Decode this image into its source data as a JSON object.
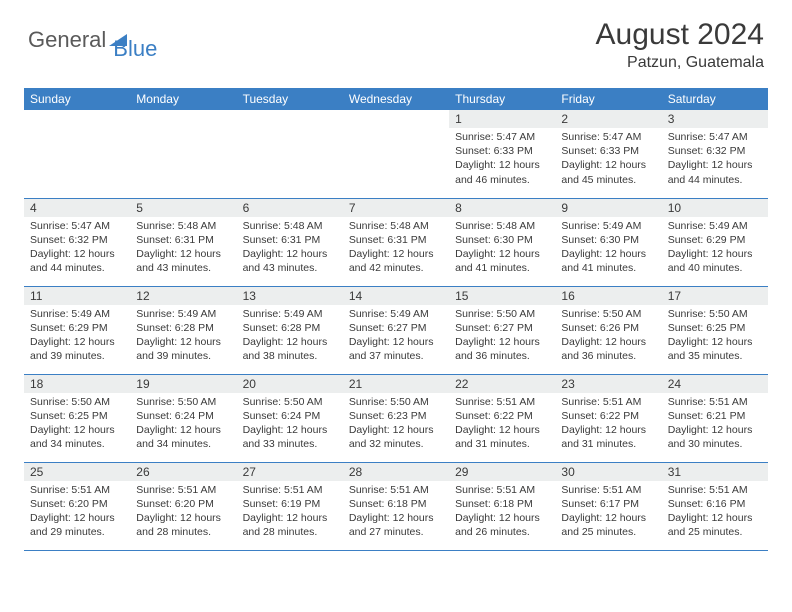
{
  "brand": {
    "part1": "General",
    "part2": "Blue"
  },
  "title": "August 2024",
  "location": "Patzun, Guatemala",
  "colors": {
    "header_bg": "#3b7fc4",
    "header_text": "#ffffff",
    "daynum_bg": "#eceeee",
    "text": "#3a3a3a",
    "rule": "#3b7fc4",
    "page_bg": "#ffffff"
  },
  "typography": {
    "title_fontsize": 30,
    "location_fontsize": 16,
    "dayhead_fontsize": 12,
    "daynum_fontsize": 12,
    "body_fontsize": 10.5
  },
  "day_headers": [
    "Sunday",
    "Monday",
    "Tuesday",
    "Wednesday",
    "Thursday",
    "Friday",
    "Saturday"
  ],
  "weeks": [
    [
      {
        "n": "",
        "sr": "",
        "ss": "",
        "dl": ""
      },
      {
        "n": "",
        "sr": "",
        "ss": "",
        "dl": ""
      },
      {
        "n": "",
        "sr": "",
        "ss": "",
        "dl": ""
      },
      {
        "n": "",
        "sr": "",
        "ss": "",
        "dl": ""
      },
      {
        "n": "1",
        "sr": "Sunrise: 5:47 AM",
        "ss": "Sunset: 6:33 PM",
        "dl": "Daylight: 12 hours and 46 minutes."
      },
      {
        "n": "2",
        "sr": "Sunrise: 5:47 AM",
        "ss": "Sunset: 6:33 PM",
        "dl": "Daylight: 12 hours and 45 minutes."
      },
      {
        "n": "3",
        "sr": "Sunrise: 5:47 AM",
        "ss": "Sunset: 6:32 PM",
        "dl": "Daylight: 12 hours and 44 minutes."
      }
    ],
    [
      {
        "n": "4",
        "sr": "Sunrise: 5:47 AM",
        "ss": "Sunset: 6:32 PM",
        "dl": "Daylight: 12 hours and 44 minutes."
      },
      {
        "n": "5",
        "sr": "Sunrise: 5:48 AM",
        "ss": "Sunset: 6:31 PM",
        "dl": "Daylight: 12 hours and 43 minutes."
      },
      {
        "n": "6",
        "sr": "Sunrise: 5:48 AM",
        "ss": "Sunset: 6:31 PM",
        "dl": "Daylight: 12 hours and 43 minutes."
      },
      {
        "n": "7",
        "sr": "Sunrise: 5:48 AM",
        "ss": "Sunset: 6:31 PM",
        "dl": "Daylight: 12 hours and 42 minutes."
      },
      {
        "n": "8",
        "sr": "Sunrise: 5:48 AM",
        "ss": "Sunset: 6:30 PM",
        "dl": "Daylight: 12 hours and 41 minutes."
      },
      {
        "n": "9",
        "sr": "Sunrise: 5:49 AM",
        "ss": "Sunset: 6:30 PM",
        "dl": "Daylight: 12 hours and 41 minutes."
      },
      {
        "n": "10",
        "sr": "Sunrise: 5:49 AM",
        "ss": "Sunset: 6:29 PM",
        "dl": "Daylight: 12 hours and 40 minutes."
      }
    ],
    [
      {
        "n": "11",
        "sr": "Sunrise: 5:49 AM",
        "ss": "Sunset: 6:29 PM",
        "dl": "Daylight: 12 hours and 39 minutes."
      },
      {
        "n": "12",
        "sr": "Sunrise: 5:49 AM",
        "ss": "Sunset: 6:28 PM",
        "dl": "Daylight: 12 hours and 39 minutes."
      },
      {
        "n": "13",
        "sr": "Sunrise: 5:49 AM",
        "ss": "Sunset: 6:28 PM",
        "dl": "Daylight: 12 hours and 38 minutes."
      },
      {
        "n": "14",
        "sr": "Sunrise: 5:49 AM",
        "ss": "Sunset: 6:27 PM",
        "dl": "Daylight: 12 hours and 37 minutes."
      },
      {
        "n": "15",
        "sr": "Sunrise: 5:50 AM",
        "ss": "Sunset: 6:27 PM",
        "dl": "Daylight: 12 hours and 36 minutes."
      },
      {
        "n": "16",
        "sr": "Sunrise: 5:50 AM",
        "ss": "Sunset: 6:26 PM",
        "dl": "Daylight: 12 hours and 36 minutes."
      },
      {
        "n": "17",
        "sr": "Sunrise: 5:50 AM",
        "ss": "Sunset: 6:25 PM",
        "dl": "Daylight: 12 hours and 35 minutes."
      }
    ],
    [
      {
        "n": "18",
        "sr": "Sunrise: 5:50 AM",
        "ss": "Sunset: 6:25 PM",
        "dl": "Daylight: 12 hours and 34 minutes."
      },
      {
        "n": "19",
        "sr": "Sunrise: 5:50 AM",
        "ss": "Sunset: 6:24 PM",
        "dl": "Daylight: 12 hours and 34 minutes."
      },
      {
        "n": "20",
        "sr": "Sunrise: 5:50 AM",
        "ss": "Sunset: 6:24 PM",
        "dl": "Daylight: 12 hours and 33 minutes."
      },
      {
        "n": "21",
        "sr": "Sunrise: 5:50 AM",
        "ss": "Sunset: 6:23 PM",
        "dl": "Daylight: 12 hours and 32 minutes."
      },
      {
        "n": "22",
        "sr": "Sunrise: 5:51 AM",
        "ss": "Sunset: 6:22 PM",
        "dl": "Daylight: 12 hours and 31 minutes."
      },
      {
        "n": "23",
        "sr": "Sunrise: 5:51 AM",
        "ss": "Sunset: 6:22 PM",
        "dl": "Daylight: 12 hours and 31 minutes."
      },
      {
        "n": "24",
        "sr": "Sunrise: 5:51 AM",
        "ss": "Sunset: 6:21 PM",
        "dl": "Daylight: 12 hours and 30 minutes."
      }
    ],
    [
      {
        "n": "25",
        "sr": "Sunrise: 5:51 AM",
        "ss": "Sunset: 6:20 PM",
        "dl": "Daylight: 12 hours and 29 minutes."
      },
      {
        "n": "26",
        "sr": "Sunrise: 5:51 AM",
        "ss": "Sunset: 6:20 PM",
        "dl": "Daylight: 12 hours and 28 minutes."
      },
      {
        "n": "27",
        "sr": "Sunrise: 5:51 AM",
        "ss": "Sunset: 6:19 PM",
        "dl": "Daylight: 12 hours and 28 minutes."
      },
      {
        "n": "28",
        "sr": "Sunrise: 5:51 AM",
        "ss": "Sunset: 6:18 PM",
        "dl": "Daylight: 12 hours and 27 minutes."
      },
      {
        "n": "29",
        "sr": "Sunrise: 5:51 AM",
        "ss": "Sunset: 6:18 PM",
        "dl": "Daylight: 12 hours and 26 minutes."
      },
      {
        "n": "30",
        "sr": "Sunrise: 5:51 AM",
        "ss": "Sunset: 6:17 PM",
        "dl": "Daylight: 12 hours and 25 minutes."
      },
      {
        "n": "31",
        "sr": "Sunrise: 5:51 AM",
        "ss": "Sunset: 6:16 PM",
        "dl": "Daylight: 12 hours and 25 minutes."
      }
    ]
  ]
}
